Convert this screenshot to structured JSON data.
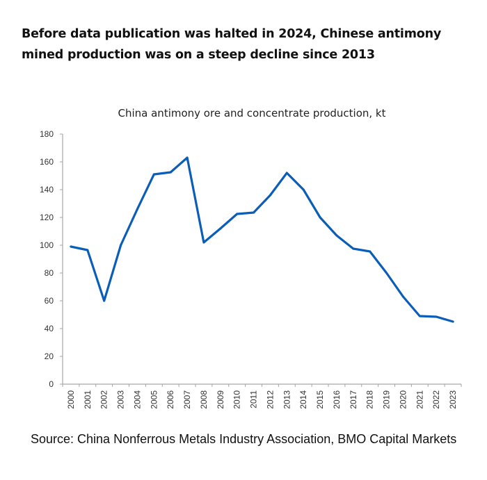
{
  "headline": "Before data publication was halted in 2024, Chinese antimony mined production was on a steep decline since 2013",
  "source": "Source: China Nonferrous Metals Industry Association, BMO Capital Markets",
  "colors": {
    "line": "#0a5db8",
    "axis": "#a6a6a6",
    "text": "#111111"
  },
  "chart_data": {
    "type": "line",
    "title": "China antimony ore and concentrate production, kt",
    "xlabel": "",
    "ylabel": "",
    "ylim": [
      0,
      180
    ],
    "yticks": [
      0,
      20,
      40,
      60,
      80,
      100,
      120,
      140,
      160,
      180
    ],
    "grid": false,
    "legend": "none",
    "categories": [
      "2000",
      "2001",
      "2002",
      "2003",
      "2004",
      "2005",
      "2006",
      "2007",
      "2008",
      "2009",
      "2010",
      "2011",
      "2012",
      "2013",
      "2014",
      "2015",
      "2016",
      "2017",
      "2018",
      "2019",
      "2020",
      "2021",
      "2022",
      "2023"
    ],
    "series": [
      {
        "name": "China antimony ore and concentrate production",
        "values": [
          99,
          96.5,
          60,
          100,
          126,
          151,
          152.5,
          163,
          102,
          112,
          122.5,
          123.5,
          136,
          152,
          140,
          120,
          107,
          97.5,
          95.5,
          80,
          63,
          49,
          48.5,
          45
        ]
      }
    ]
  }
}
